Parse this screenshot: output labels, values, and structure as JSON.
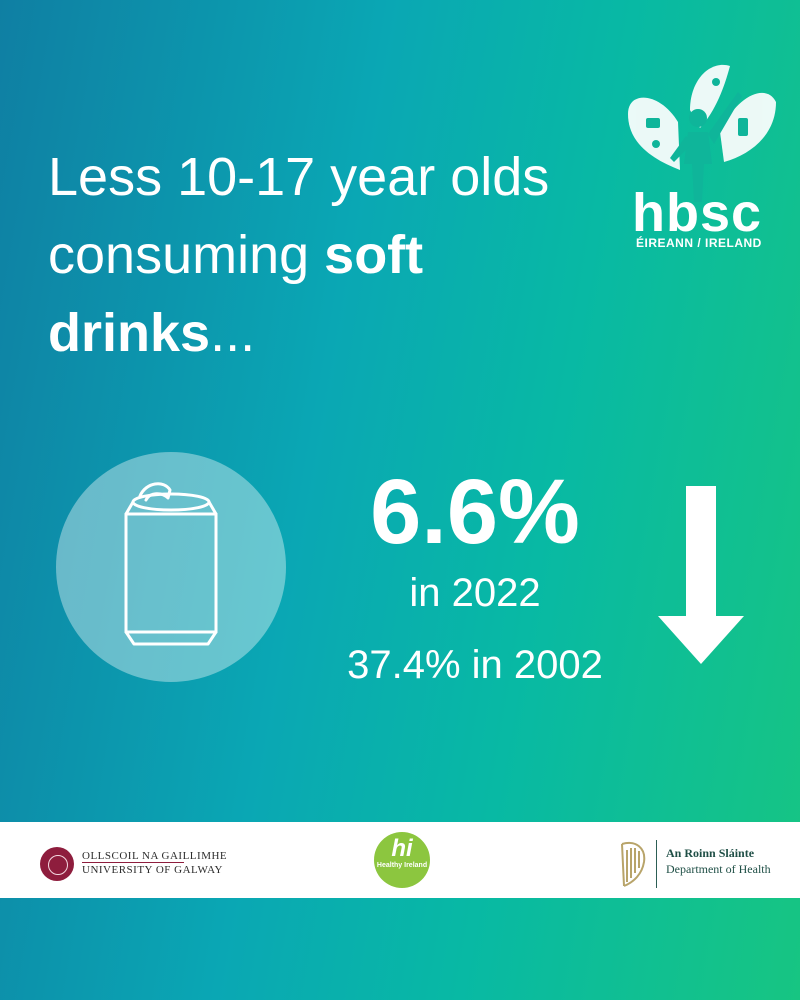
{
  "headline": {
    "line1": "Less 10-17 year olds",
    "line2_pre": "consuming ",
    "line2_bold": "soft",
    "line3_bold": "drinks",
    "line3_post": "..."
  },
  "brand": {
    "wordmark": "hbsc",
    "subtitle": "ÉIREANN / IRELAND"
  },
  "stat": {
    "value": "6.6%",
    "year_line": "in 2022",
    "compare_line": "37.4% in 2002",
    "trend_icon": "arrow-down-icon"
  },
  "footer": {
    "galway_line1": "OLLSCOIL NA GAILLIMHE",
    "galway_line2": "UNIVERSITY OF GALWAY",
    "hi_word": "hi",
    "hi_sub": "Healthy Ireland",
    "doh_line1": "An Roinn Sláinte",
    "doh_line2": "Department of Health"
  },
  "colors": {
    "gradient_start": "#0f7fa3",
    "gradient_end": "#17c582",
    "galway_brand": "#8e1d3d",
    "healthy_ireland_green": "#8cc63f",
    "doh_green": "#1f4f46"
  }
}
